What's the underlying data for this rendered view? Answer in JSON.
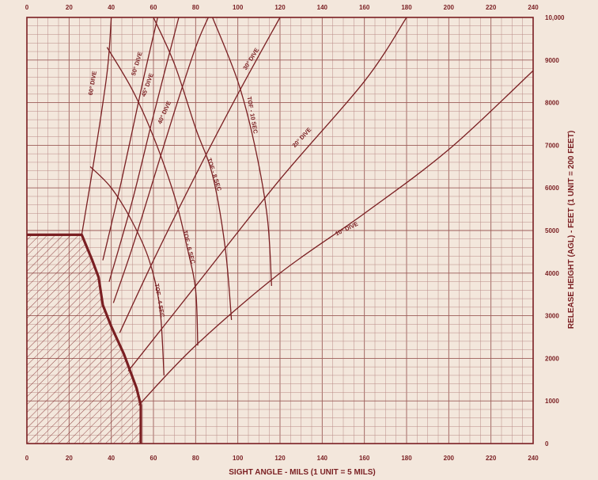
{
  "chart_data": {
    "type": "line",
    "title": "",
    "xlabel": "SIGHT ANGLE - MILS (1 UNIT = 5 MILS)",
    "ylabel": "RELEASE HEIGHT (AGL) - FEET (1 UNIT = 200 FEET)",
    "xlim": [
      0,
      240
    ],
    "ylim": [
      0,
      10000
    ],
    "x_ticks": [
      0,
      20,
      40,
      60,
      80,
      100,
      120,
      140,
      160,
      180,
      200,
      220,
      240
    ],
    "y_ticks": [
      0,
      1000,
      2000,
      3000,
      4000,
      5000,
      6000,
      7000,
      8000,
      9000,
      10000
    ],
    "y_tick_labels": [
      "0",
      "1000",
      "2000",
      "3000",
      "4000",
      "5000",
      "6000",
      "7000",
      "8000",
      "9000",
      "10,000"
    ],
    "grid": true,
    "colors": {
      "ink": "#7a1f22",
      "paper": "#f3e7dc",
      "grid": "#b98a86"
    },
    "restricted_area": {
      "boundary": [
        [
          0,
          4900
        ],
        [
          26,
          4900
        ],
        [
          31,
          4300
        ],
        [
          34,
          3900
        ],
        [
          36,
          3250
        ],
        [
          40,
          2750
        ],
        [
          46,
          2100
        ],
        [
          52,
          1300
        ],
        [
          54,
          900
        ],
        [
          54,
          0
        ],
        [
          0,
          0
        ]
      ]
    },
    "series": [
      {
        "name": "10° DIVE",
        "kind": "dive",
        "label_at": [
          152,
          5000
        ],
        "label_angle": -26,
        "points": [
          [
            53,
            900
          ],
          [
            80,
            2300
          ],
          [
            120,
            4000
          ],
          [
            160,
            5400
          ],
          [
            200,
            6900
          ],
          [
            240,
            8750
          ]
        ]
      },
      {
        "name": "20° DIVE",
        "kind": "dive",
        "label_at": [
          131,
          7150
        ],
        "label_angle": -47,
        "points": [
          [
            48,
            1700
          ],
          [
            80,
            3700
          ],
          [
            120,
            6200
          ],
          [
            160,
            8500
          ],
          [
            180,
            10000
          ]
        ]
      },
      {
        "name": "30° DIVE",
        "kind": "dive",
        "label_at": [
          107,
          9000
        ],
        "label_angle": -58,
        "points": [
          [
            44,
            2600
          ],
          [
            60,
            4300
          ],
          [
            80,
            6300
          ],
          [
            100,
            8200
          ],
          [
            120,
            10000
          ]
        ]
      },
      {
        "name": "40° DIVE",
        "kind": "dive",
        "label_at": [
          66,
          7750
        ],
        "label_angle": -66,
        "points": [
          [
            41,
            3300
          ],
          [
            50,
            4600
          ],
          [
            60,
            6200
          ],
          [
            70,
            7800
          ],
          [
            80,
            9300
          ],
          [
            86,
            10000
          ]
        ]
      },
      {
        "name": "45° DIVE",
        "kind": "dive",
        "label_at": [
          58,
          8400
        ],
        "label_angle": -70,
        "points": [
          [
            39,
            3800
          ],
          [
            50,
            5700
          ],
          [
            60,
            7700
          ],
          [
            72,
            10000
          ]
        ]
      },
      {
        "name": "50° DIVE",
        "kind": "dive",
        "label_at": [
          53,
          8900
        ],
        "label_angle": -73,
        "points": [
          [
            36,
            4300
          ],
          [
            45,
            6200
          ],
          [
            55,
            8500
          ],
          [
            62,
            10000
          ]
        ]
      },
      {
        "name": "60° DIVE",
        "kind": "dive",
        "label_at": [
          32,
          8450
        ],
        "label_angle": -80,
        "points": [
          [
            26,
            4900
          ],
          [
            32,
            6700
          ],
          [
            38,
            8700
          ],
          [
            40,
            10000
          ]
        ]
      },
      {
        "name": "TOF - 4 SEC",
        "kind": "tof",
        "label_at": [
          62,
          3350
        ],
        "label_angle": 80,
        "points": [
          [
            30,
            6500
          ],
          [
            40,
            6000
          ],
          [
            50,
            5200
          ],
          [
            58,
            4300
          ],
          [
            63,
            3200
          ],
          [
            65,
            1600
          ]
        ]
      },
      {
        "name": "TOF - 6 SEC",
        "kind": "tof",
        "label_at": [
          76,
          4600
        ],
        "label_angle": 76,
        "points": [
          [
            38,
            9300
          ],
          [
            50,
            8300
          ],
          [
            60,
            7200
          ],
          [
            70,
            5800
          ],
          [
            76,
            4600
          ],
          [
            80,
            3600
          ],
          [
            81,
            2300
          ]
        ]
      },
      {
        "name": "TOF - 8 SEC",
        "kind": "tof",
        "label_at": [
          88,
          6300
        ],
        "label_angle": 72,
        "points": [
          [
            60,
            10000
          ],
          [
            70,
            8900
          ],
          [
            80,
            7400
          ],
          [
            88,
            6300
          ],
          [
            94,
            4600
          ],
          [
            97,
            2900
          ]
        ]
      },
      {
        "name": "TOF - 10 SEC",
        "kind": "tof",
        "label_at": [
          106,
          7700
        ],
        "label_angle": 80,
        "points": [
          [
            88,
            10000
          ],
          [
            100,
            8500
          ],
          [
            108,
            7000
          ],
          [
            114,
            5300
          ],
          [
            116,
            3700
          ]
        ]
      }
    ]
  }
}
